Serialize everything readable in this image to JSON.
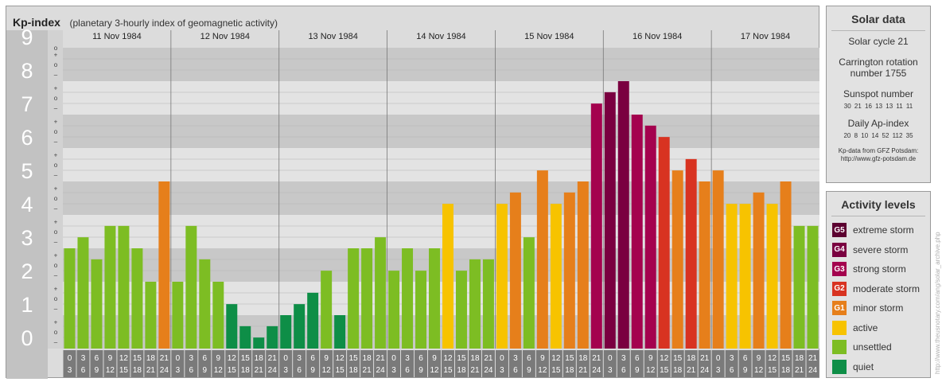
{
  "header": {
    "title": "Kp-index",
    "subtitle": "(planetary 3-hourly index of geomagnetic activity)"
  },
  "chart_data": {
    "type": "bar",
    "ylim": [
      0,
      9
    ],
    "y_tick_labels": [
      "0",
      "1",
      "2",
      "3",
      "4",
      "5",
      "6",
      "7",
      "8",
      "9"
    ],
    "y_minor_labels": [
      "+",
      "o",
      "–"
    ],
    "days": [
      "11 Nov 1984",
      "12 Nov 1984",
      "13 Nov 1984",
      "14 Nov 1984",
      "15 Nov 1984",
      "16 Nov 1984",
      "17 Nov 1984"
    ],
    "interval_top": [
      "0",
      "3",
      "6",
      "9",
      "12",
      "15",
      "18",
      "21"
    ],
    "interval_bottom": [
      "3",
      "6",
      "9",
      "12",
      "15",
      "18",
      "21",
      "24"
    ],
    "values": [
      [
        3.0,
        3.33,
        2.67,
        3.67,
        3.67,
        3.0,
        2.0,
        5.0
      ],
      [
        2.0,
        3.67,
        2.67,
        2.0,
        1.33,
        0.67,
        0.33,
        0.67
      ],
      [
        1.0,
        1.33,
        1.67,
        2.33,
        1.0,
        3.0,
        3.0,
        3.33
      ],
      [
        2.33,
        3.0,
        2.33,
        3.0,
        4.33,
        2.33,
        2.67,
        2.67
      ],
      [
        4.33,
        4.67,
        3.33,
        5.33,
        4.33,
        4.67,
        5.0,
        7.33
      ],
      [
        7.67,
        8.0,
        7.0,
        6.67,
        6.33,
        5.33,
        5.67,
        5.0
      ],
      [
        5.33,
        4.33,
        4.33,
        4.67,
        4.33,
        5.0,
        3.67,
        3.67
      ]
    ],
    "colors": {
      "quiet": "#0e8e47",
      "unsettled": "#7dbd23",
      "active": "#f7c300",
      "G1": "#e67f1b",
      "G2": "#d83321",
      "G3": "#a4024e",
      "G4": "#7a0040",
      "G5": "#5c0030"
    }
  },
  "solar": {
    "heading": "Solar data",
    "cycle": "Solar cycle 21",
    "carrington_1": "Carrington rotation",
    "carrington_2": "number 1755",
    "sunspot_heading": "Sunspot number",
    "sunspot_values": "30 21 16 13 13 11 11",
    "ap_heading": "Daily Ap-index",
    "ap_values": "20 8 10 14 52 112 35",
    "source_1": "Kp-data from GFZ Potsdam:",
    "source_2": "http://www.gfz-potsdam.de"
  },
  "activity": {
    "heading": "Activity levels",
    "levels": [
      {
        "code": "G5",
        "label": "extreme storm",
        "color": "#5c0030"
      },
      {
        "code": "G4",
        "label": "severe storm",
        "color": "#7a0040"
      },
      {
        "code": "G3",
        "label": "strong storm",
        "color": "#a4024e"
      },
      {
        "code": "G2",
        "label": "moderate storm",
        "color": "#d83321"
      },
      {
        "code": "G1",
        "label": "minor storm",
        "color": "#e67f1b"
      },
      {
        "code": "",
        "label": "active",
        "color": "#f7c300"
      },
      {
        "code": "",
        "label": "unsettled",
        "color": "#7dbd23"
      },
      {
        "code": "",
        "label": "quiet",
        "color": "#0e8e47"
      }
    ]
  },
  "watermark": "http://www.theusnotary.com/ang/solar_archive.php"
}
